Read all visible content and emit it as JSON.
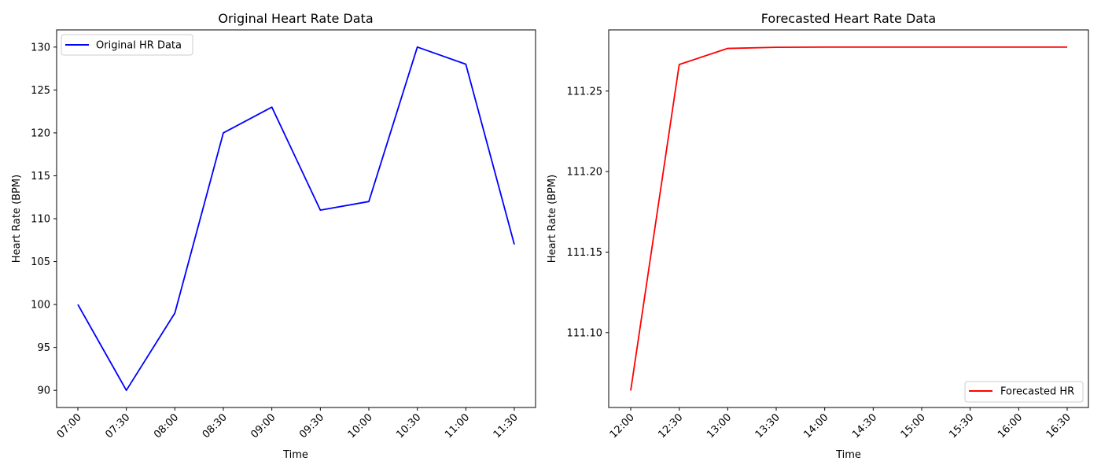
{
  "chart_data": [
    {
      "type": "line",
      "title": "Original Heart Rate Data",
      "xlabel": "Time",
      "ylabel": "Heart Rate (BPM)",
      "categories": [
        "07:00",
        "07:30",
        "08:00",
        "08:30",
        "09:00",
        "09:30",
        "10:00",
        "10:30",
        "11:00",
        "11:30"
      ],
      "series": [
        {
          "name": "Original HR Data",
          "color": "#0000ff",
          "values": [
            100,
            90,
            99,
            120,
            123,
            111,
            112,
            130,
            128,
            107
          ]
        }
      ],
      "ylim": [
        88,
        132
      ],
      "yticks": [
        "90",
        "95",
        "100",
        "105",
        "110",
        "115",
        "120",
        "125",
        "130"
      ],
      "grid": false,
      "legend_position": "upper-left"
    },
    {
      "type": "line",
      "title": "Forecasted Heart Rate Data",
      "xlabel": "Time",
      "ylabel": "Heart Rate (BPM)",
      "categories": [
        "12:00",
        "12:30",
        "13:00",
        "13:30",
        "14:00",
        "14:30",
        "15:00",
        "15:30",
        "16:00",
        "16:30"
      ],
      "series": [
        {
          "name": "Forecasted HR",
          "color": "#ff0000",
          "values": [
            111.064,
            111.2665,
            111.2765,
            111.2772,
            111.2773,
            111.2773,
            111.2773,
            111.2773,
            111.2773,
            111.2773
          ]
        }
      ],
      "ylim": [
        111.0535,
        111.288
      ],
      "yticks": [
        "111.10",
        "111.15",
        "111.20",
        "111.25"
      ],
      "grid": false,
      "legend_position": "lower-right"
    }
  ]
}
